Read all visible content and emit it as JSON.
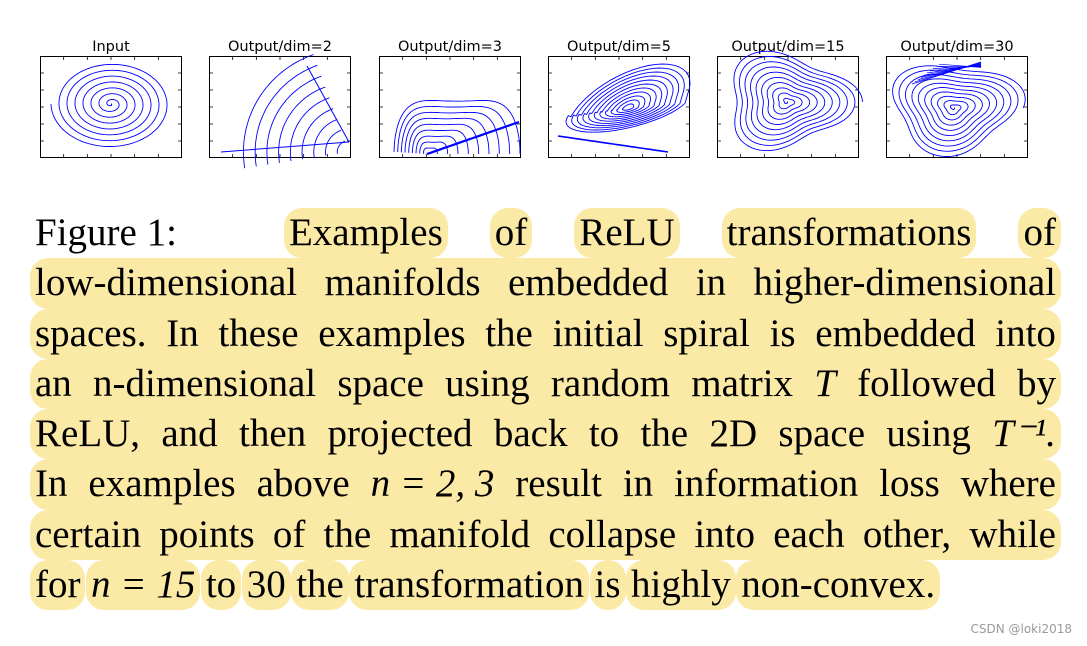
{
  "figure": {
    "panels": [
      {
        "title": "Input",
        "kind": "input"
      },
      {
        "title": "Output/dim=2",
        "kind": "dim2"
      },
      {
        "title": "Output/dim=3",
        "kind": "dim3"
      },
      {
        "title": "Output/dim=5",
        "kind": "dim5"
      },
      {
        "title": "Output/dim=15",
        "kind": "dim15"
      },
      {
        "title": "Output/dim=30",
        "kind": "dim30"
      }
    ],
    "curve_color": "#0000ff"
  },
  "caption": {
    "label": "Figure 1:",
    "highlight_color": "#fbe9a6",
    "lines": [
      {
        "words": [
          "Examples",
          "of",
          "ReLU",
          "transformations",
          "of"
        ]
      },
      {
        "words": [
          "low-dimensional",
          "manifolds",
          "embedded",
          "in",
          "higher-dimensional"
        ]
      },
      {
        "words": [
          "spaces.",
          "In",
          "these",
          "examples",
          "the",
          "initial",
          "spiral",
          "is",
          "embedded",
          "into"
        ]
      },
      {
        "words": [
          "an",
          "n-dimensional",
          "space",
          "using",
          "random",
          "matrix",
          "T",
          "followed",
          "by"
        ]
      },
      {
        "words": [
          "ReLU,",
          "and",
          "then",
          "projected",
          "back",
          "to",
          "the",
          "2D",
          "space",
          "using",
          "T⁻¹."
        ]
      },
      {
        "words": [
          "In",
          "examples",
          "above",
          "n = 2, 3",
          "result",
          "in",
          "information",
          "loss",
          "where"
        ]
      },
      {
        "words": [
          "certain",
          "points",
          "of",
          "the",
          "manifold",
          "collapse",
          "into",
          "each",
          "other,",
          "while"
        ]
      },
      {
        "words": [
          "for",
          "n = 15",
          "to",
          "30",
          "the",
          "transformation",
          "is",
          "highly",
          "non-convex."
        ]
      }
    ]
  },
  "watermark": "CSDN @loki2018"
}
